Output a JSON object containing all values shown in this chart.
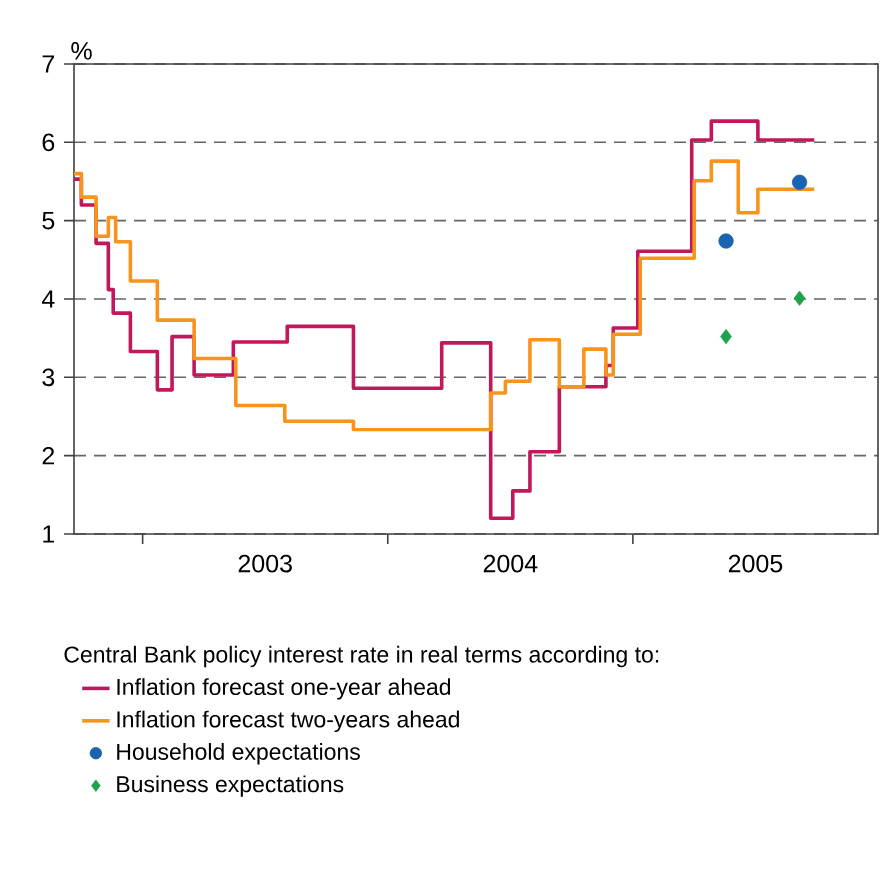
{
  "chart_data": {
    "type": "step",
    "ylabel": "%",
    "legend_title": "Central Bank policy interest rate in real terms according to:",
    "xlim": [
      2002.72,
      2006.0
    ],
    "ylim": [
      1,
      7
    ],
    "yticks": [
      1,
      2,
      3,
      4,
      5,
      6,
      7
    ],
    "xticks": [
      {
        "value": 2003,
        "label": null
      },
      {
        "value": 2003.5,
        "label": "2003"
      },
      {
        "value": 2004,
        "label": null
      },
      {
        "value": 2004.5,
        "label": "2004"
      },
      {
        "value": 2005,
        "label": null
      },
      {
        "value": 2005.5,
        "label": "2005"
      }
    ],
    "grid": "y",
    "legend": "bottom",
    "series": [
      {
        "name": "Inflation forecast one-year ahead",
        "color": "#c0185a",
        "x": [
          2002.72,
          2002.75,
          2002.81,
          2002.86,
          2002.88,
          2002.95,
          2003.06,
          2003.12,
          2003.21,
          2003.37,
          2003.59,
          2003.86,
          2004.22,
          2004.42,
          2004.51,
          2004.58,
          2004.7,
          2004.89,
          2004.92,
          2005.02,
          2005.24,
          2005.32,
          2005.51,
          2005.74
        ],
        "values": [
          5.53,
          5.2,
          4.71,
          4.12,
          3.82,
          3.33,
          2.84,
          3.52,
          3.03,
          3.45,
          3.65,
          2.86,
          3.44,
          1.2,
          1.55,
          2.05,
          2.88,
          3.15,
          3.63,
          4.61,
          6.03,
          6.27,
          6.03,
          6.03
        ]
      },
      {
        "name": "Inflation forecast two-years ahead",
        "color": "#f7941d",
        "x": [
          2002.72,
          2002.75,
          2002.81,
          2002.86,
          2002.89,
          2002.95,
          2003.06,
          2003.21,
          2003.38,
          2003.58,
          2003.86,
          2004.42,
          2004.48,
          2004.58,
          2004.7,
          2004.8,
          2004.89,
          2004.92,
          2005.03,
          2005.25,
          2005.32,
          2005.43,
          2005.51,
          2005.74
        ],
        "values": [
          5.6,
          5.3,
          4.8,
          5.04,
          4.73,
          4.23,
          3.73,
          3.24,
          2.64,
          2.44,
          2.33,
          2.8,
          2.95,
          3.48,
          2.88,
          3.36,
          3.03,
          3.55,
          4.52,
          5.51,
          5.76,
          5.1,
          5.4,
          5.4
        ]
      },
      {
        "name": "Household expectations",
        "type": "scatter",
        "marker": "circle",
        "color": "#1a63b0",
        "x": [
          2005.38,
          2005.68
        ],
        "values": [
          4.74,
          5.49
        ]
      },
      {
        "name": "Business expectations",
        "type": "scatter",
        "marker": "diamond",
        "color": "#1fa34a",
        "x": [
          2005.38,
          2005.68
        ],
        "values": [
          3.52,
          4.01
        ]
      }
    ]
  }
}
